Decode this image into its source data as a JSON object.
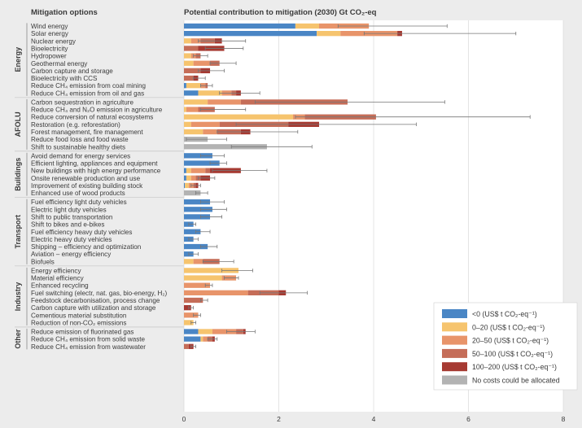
{
  "colors": {
    "background": "#ececec",
    "plot": "#ffffff",
    "neg": "#4a86c5",
    "c0_20": "#f6c46e",
    "c20_50": "#e8946a",
    "c50_100": "#c56d58",
    "c100_200": "#a63a32",
    "na": "#b3b3b3",
    "whisker": "#777777",
    "text": "#3a3a3a"
  },
  "chart_data": {
    "type": "bar",
    "stacked": true,
    "orientation": "horizontal",
    "title": "Potential contribution to mitigation (2030) Gt CO₂-eq",
    "category_header": "Mitigation options",
    "xlim": [
      0,
      8
    ],
    "xticks": [
      0,
      2,
      4,
      6,
      8
    ],
    "grid": true,
    "legend_position": "bottom-right",
    "series": [
      {
        "key": "neg",
        "name": "<0 (US$ t CO₂-eq⁻¹)"
      },
      {
        "key": "c0_20",
        "name": "0–20 (US$ t CO₂-eq⁻¹)"
      },
      {
        "key": "c20_50",
        "name": "20–50 (US$ t CO₂-eq⁻¹)"
      },
      {
        "key": "c50_100",
        "name": "50–100 (US$ t CO₂-eq⁻¹)"
      },
      {
        "key": "c100_200",
        "name": "100–200 (US$ t CO₂-eq⁻¹)"
      },
      {
        "key": "na",
        "name": "No costs could be allocated"
      }
    ],
    "groups": [
      {
        "name": "Energy",
        "items": [
          {
            "label": "Wind energy",
            "seg": [
              [
                "neg",
                2.35
              ],
              [
                "c0_20",
                0.5
              ],
              [
                "c20_50",
                1.05
              ]
            ],
            "err": [
              3.25,
              5.55
            ]
          },
          {
            "label": "Solar energy",
            "seg": [
              [
                "neg",
                2.8
              ],
              [
                "c0_20",
                0.5
              ],
              [
                "c20_50",
                1.2
              ],
              [
                "c100_200",
                0.1
              ]
            ],
            "err": [
              3.8,
              7.0
            ]
          },
          {
            "label": "Nuclear energy",
            "seg": [
              [
                "c0_20",
                0.15
              ],
              [
                "c20_50",
                0.2
              ],
              [
                "c50_100",
                0.3
              ],
              [
                "c100_200",
                0.15
              ]
            ],
            "err": [
              0.3,
              1.3
            ]
          },
          {
            "label": "Bioelectricity",
            "seg": [
              [
                "c50_100",
                0.3
              ],
              [
                "c100_200",
                0.55
              ]
            ],
            "err": [
              0.45,
              1.25
            ]
          },
          {
            "label": "Hydropower",
            "seg": [
              [
                "c0_20",
                0.15
              ],
              [
                "c20_50",
                0.1
              ],
              [
                "c50_100",
                0.1
              ]
            ],
            "err": [
              0.2,
              0.5
            ]
          },
          {
            "label": "Geothermal energy",
            "seg": [
              [
                "c0_20",
                0.2
              ],
              [
                "c20_50",
                0.35
              ],
              [
                "c50_100",
                0.2
              ]
            ],
            "err": [
              0.55,
              1.1
            ]
          },
          {
            "label": "Carbon capture and storage",
            "seg": [
              [
                "c50_100",
                0.35
              ],
              [
                "c100_200",
                0.2
              ]
            ],
            "err": [
              0.3,
              0.85
            ]
          },
          {
            "label": "Bioelectricity with CCS",
            "seg": [
              [
                "c50_100",
                0.2
              ],
              [
                "c100_200",
                0.1
              ]
            ],
            "err": [
              0.2,
              0.45
            ]
          },
          {
            "label": "Reduce CH₄ emission from coal mining",
            "seg": [
              [
                "neg",
                0.05
              ],
              [
                "c0_20",
                0.3
              ],
              [
                "c20_50",
                0.1
              ],
              [
                "c50_100",
                0.05
              ]
            ],
            "err": [
              0.35,
              0.6
            ]
          },
          {
            "label": "Reduce CH₄ emission from oil and gas",
            "seg": [
              [
                "neg",
                0.3
              ],
              [
                "c0_20",
                0.5
              ],
              [
                "c20_50",
                0.2
              ],
              [
                "c50_100",
                0.1
              ],
              [
                "c100_200",
                0.1
              ]
            ],
            "err": [
              0.75,
              1.6
            ]
          }
        ]
      },
      {
        "name": "AFOLU",
        "items": [
          {
            "label": "Carbon sequestration in agriculture",
            "seg": [
              [
                "c0_20",
                0.5
              ],
              [
                "c20_50",
                0.7
              ],
              [
                "c50_100",
                2.25
              ]
            ],
            "err": [
              1.5,
              5.5
            ]
          },
          {
            "label": "Reduce CH₄ and N₂O emission in agriculture",
            "seg": [
              [
                "c0_20",
                0.05
              ],
              [
                "c20_50",
                0.25
              ],
              [
                "c50_100",
                0.35
              ]
            ],
            "err": [
              0.35,
              1.3
            ]
          },
          {
            "label": "Reduce conversion of natural ecosystems",
            "seg": [
              [
                "c0_20",
                2.3
              ],
              [
                "c20_50",
                0.25
              ],
              [
                "c50_100",
                1.5
              ]
            ],
            "err": [
              2.35,
              7.3
            ]
          },
          {
            "label": "Restoration (e.g. reforestation)",
            "seg": [
              [
                "c0_20",
                0.15
              ],
              [
                "c20_50",
                0.6
              ],
              [
                "c50_100",
                1.45
              ],
              [
                "c100_200",
                0.65
              ]
            ],
            "err": [
              1.1,
              4.9
            ]
          },
          {
            "label": "Forest management, fire management",
            "seg": [
              [
                "c0_20",
                0.4
              ],
              [
                "c20_50",
                0.3
              ],
              [
                "c50_100",
                0.5
              ],
              [
                "c100_200",
                0.2
              ]
            ],
            "err": [
              0.7,
              2.4
            ]
          },
          {
            "label": "Reduce food loss and food waste",
            "seg": [
              [
                "na",
                0.5
              ]
            ],
            "err": [
              0.05,
              0.9
            ]
          },
          {
            "label": "Shift to sustainable healthy diets",
            "seg": [
              [
                "na",
                1.75
              ]
            ],
            "err": [
              1.0,
              2.7
            ]
          }
        ]
      },
      {
        "name": "Buildings",
        "items": [
          {
            "label": "Avoid demand for energy services",
            "seg": [
              [
                "neg",
                0.6
              ]
            ],
            "err": [
              0.35,
              0.85
            ]
          },
          {
            "label": "Efficient lighting, appliances and equipment",
            "seg": [
              [
                "neg",
                0.75
              ]
            ],
            "err": [
              0.55,
              0.9
            ]
          },
          {
            "label": "New buildings with high energy performance",
            "seg": [
              [
                "neg",
                0.05
              ],
              [
                "c0_20",
                0.1
              ],
              [
                "c20_50",
                0.3
              ],
              [
                "c50_100",
                0.1
              ],
              [
                "c100_200",
                0.65
              ]
            ],
            "err": [
              0.6,
              1.75
            ]
          },
          {
            "label": "Onsite renewable production and use",
            "seg": [
              [
                "neg",
                0.05
              ],
              [
                "c0_20",
                0.1
              ],
              [
                "c20_50",
                0.1
              ],
              [
                "c50_100",
                0.1
              ],
              [
                "c100_200",
                0.2
              ]
            ],
            "err": [
              0.3,
              0.65
            ]
          },
          {
            "label": "Improvement of existing building stock",
            "seg": [
              [
                "neg",
                0.02
              ],
              [
                "c0_20",
                0.08
              ],
              [
                "c20_50",
                0.1
              ],
              [
                "c50_100",
                0.05
              ],
              [
                "c100_200",
                0.05
              ]
            ],
            "err": [
              0.15,
              0.35
            ]
          },
          {
            "label": "Enhanced use of wood products",
            "seg": [
              [
                "na",
                0.35
              ]
            ],
            "err": [
              0.25,
              0.5
            ]
          }
        ]
      },
      {
        "name": "Transport",
        "items": [
          {
            "label": "Fuel efficiency light duty vehicles",
            "seg": [
              [
                "neg",
                0.55
              ]
            ],
            "err": [
              0.35,
              0.85
            ]
          },
          {
            "label": "Electric light duty vehicles",
            "seg": [
              [
                "neg",
                0.6
              ]
            ],
            "err": [
              0.35,
              0.9
            ]
          },
          {
            "label": "Shift to public transportation",
            "seg": [
              [
                "neg",
                0.55
              ]
            ],
            "err": [
              0.35,
              0.8
            ]
          },
          {
            "label": "Shift to bikes and e-bikes",
            "seg": [
              [
                "neg",
                0.2
              ]
            ],
            "err": [
              0.1,
              0.25
            ]
          },
          {
            "label": "Fuel efficiency heavy duty vehicles",
            "seg": [
              [
                "neg",
                0.35
              ]
            ],
            "err": [
              0.25,
              0.55
            ]
          },
          {
            "label": "Electric heavy duty vehicles",
            "seg": [
              [
                "neg",
                0.2
              ]
            ],
            "err": [
              0.1,
              0.3
            ]
          },
          {
            "label": "Shipping – efficiency and optimization",
            "seg": [
              [
                "neg",
                0.5
              ]
            ],
            "err": [
              0.35,
              0.7
            ]
          },
          {
            "label": "Aviation – energy efficiency",
            "seg": [
              [
                "neg",
                0.2
              ]
            ],
            "err": [
              0.1,
              0.3
            ]
          },
          {
            "label": "Biofuels",
            "seg": [
              [
                "c0_20",
                0.2
              ],
              [
                "c20_50",
                0.2
              ],
              [
                "c50_100",
                0.35
              ]
            ],
            "err": [
              0.4,
              1.05
            ]
          }
        ]
      },
      {
        "name": "Industry",
        "items": [
          {
            "label": "Energy efficiency",
            "seg": [
              [
                "c0_20",
                1.15
              ]
            ],
            "err": [
              0.8,
              1.45
            ]
          },
          {
            "label": "Material efficiency",
            "seg": [
              [
                "c0_20",
                0.8
              ],
              [
                "c20_50",
                0.3
              ]
            ],
            "err": [
              0.85,
              1.15
            ]
          },
          {
            "label": "Enhanced recycling",
            "seg": [
              [
                "c20_50",
                0.55
              ]
            ],
            "err": [
              0.45,
              0.6
            ]
          },
          {
            "label": "Fuel switching (electr, nat. gas, bio-energy, H₂)",
            "seg": [
              [
                "c20_50",
                1.35
              ],
              [
                "c50_100",
                0.65
              ],
              [
                "c100_200",
                0.15
              ]
            ],
            "err": [
              1.6,
              2.6
            ]
          },
          {
            "label": "Feedstock decarbonisation, process change",
            "seg": [
              [
                "c50_100",
                0.4
              ]
            ],
            "err": [
              0.35,
              0.5
            ]
          },
          {
            "label": "Carbon capture with utilization and storage",
            "seg": [
              [
                "c100_200",
                0.15
              ]
            ],
            "err": [
              0.1,
              0.2
            ]
          },
          {
            "label": "Cementious material substitution",
            "seg": [
              [
                "c20_50",
                0.3
              ]
            ],
            "err": [
              0.2,
              0.35
            ]
          },
          {
            "label": "Reduction of non-CO₂ emissions",
            "seg": [
              [
                "c0_20",
                0.2
              ]
            ],
            "err": [
              0.15,
              0.25
            ]
          }
        ]
      },
      {
        "name": "Other",
        "items": [
          {
            "label": "Reduce emission of fluorinated gas",
            "seg": [
              [
                "neg",
                0.3
              ],
              [
                "c0_20",
                0.3
              ],
              [
                "c20_50",
                0.5
              ],
              [
                "c50_100",
                0.15
              ],
              [
                "c100_200",
                0.05
              ]
            ],
            "err": [
              0.9,
              1.5
            ]
          },
          {
            "label": "Reduce CH₄ emission from solid waste",
            "seg": [
              [
                "neg",
                0.35
              ],
              [
                "c0_20",
                0.05
              ],
              [
                "c20_50",
                0.1
              ],
              [
                "c50_100",
                0.1
              ],
              [
                "c100_200",
                0.05
              ]
            ],
            "err": [
              0.5,
              0.7
            ]
          },
          {
            "label": "Reduce CH₄ emission from wastewater",
            "seg": [
              [
                "c50_100",
                0.1
              ],
              [
                "c100_200",
                0.1
              ]
            ],
            "err": [
              0.15,
              0.25
            ]
          }
        ]
      }
    ]
  }
}
